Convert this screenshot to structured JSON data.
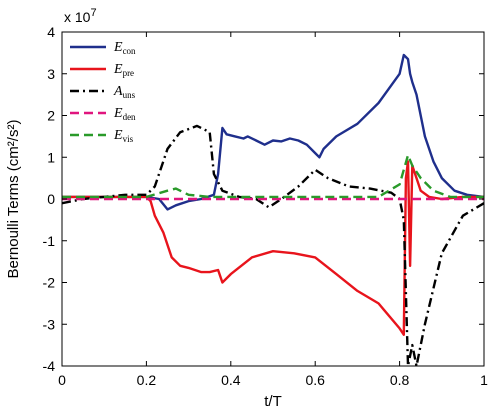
{
  "chart_data": {
    "type": "line",
    "title": "",
    "xlabel": "t/T",
    "ylabel": "Bernoulli Terms (cm²/s²)",
    "y_multiplier_label": "x 10",
    "y_multiplier_exponent": "7",
    "xlim": [
      0,
      1
    ],
    "ylim": [
      -4,
      4
    ],
    "x_ticks": [
      0,
      0.2,
      0.4,
      0.6,
      0.8,
      1
    ],
    "x_tick_labels": [
      "0",
      "0.2",
      "0.4",
      "0.6",
      "0.8",
      "1"
    ],
    "y_ticks": [
      -4,
      -3,
      -2,
      -1,
      0,
      1,
      2,
      3,
      4
    ],
    "y_tick_labels": [
      "-4",
      "-3",
      "-2",
      "-1",
      "0",
      "1",
      "2",
      "3",
      "4"
    ],
    "grid": false,
    "legend_placement": "top-left",
    "series": [
      {
        "name": "E",
        "subscript": "con",
        "color": "#1f2f8c",
        "dash": "solid",
        "points": [
          [
            0,
            0.05
          ],
          [
            0.1,
            0.05
          ],
          [
            0.2,
            0.05
          ],
          [
            0.23,
            0.0
          ],
          [
            0.25,
            -0.25
          ],
          [
            0.27,
            -0.15
          ],
          [
            0.3,
            -0.05
          ],
          [
            0.33,
            0.0
          ],
          [
            0.36,
            0.1
          ],
          [
            0.37,
            0.6
          ],
          [
            0.38,
            1.7
          ],
          [
            0.39,
            1.55
          ],
          [
            0.41,
            1.5
          ],
          [
            0.43,
            1.45
          ],
          [
            0.44,
            1.5
          ],
          [
            0.46,
            1.4
          ],
          [
            0.48,
            1.3
          ],
          [
            0.5,
            1.4
          ],
          [
            0.52,
            1.38
          ],
          [
            0.54,
            1.45
          ],
          [
            0.56,
            1.4
          ],
          [
            0.58,
            1.3
          ],
          [
            0.6,
            1.1
          ],
          [
            0.61,
            1.0
          ],
          [
            0.62,
            1.2
          ],
          [
            0.65,
            1.5
          ],
          [
            0.7,
            1.8
          ],
          [
            0.75,
            2.3
          ],
          [
            0.8,
            3.0
          ],
          [
            0.81,
            3.45
          ],
          [
            0.82,
            3.35
          ],
          [
            0.825,
            3.0
          ],
          [
            0.83,
            2.8
          ],
          [
            0.84,
            2.5
          ],
          [
            0.86,
            1.5
          ],
          [
            0.88,
            0.9
          ],
          [
            0.9,
            0.5
          ],
          [
            0.93,
            0.2
          ],
          [
            0.96,
            0.1
          ],
          [
            1.0,
            0.05
          ]
        ]
      },
      {
        "name": "E",
        "subscript": "pre",
        "color": "#e8141c",
        "dash": "solid",
        "points": [
          [
            0,
            0.05
          ],
          [
            0.1,
            0.05
          ],
          [
            0.2,
            0.05
          ],
          [
            0.21,
            -0.05
          ],
          [
            0.22,
            -0.4
          ],
          [
            0.24,
            -0.8
          ],
          [
            0.26,
            -1.4
          ],
          [
            0.28,
            -1.6
          ],
          [
            0.3,
            -1.65
          ],
          [
            0.33,
            -1.75
          ],
          [
            0.35,
            -1.75
          ],
          [
            0.37,
            -1.7
          ],
          [
            0.38,
            -2.0
          ],
          [
            0.4,
            -1.8
          ],
          [
            0.45,
            -1.4
          ],
          [
            0.5,
            -1.25
          ],
          [
            0.55,
            -1.3
          ],
          [
            0.6,
            -1.4
          ],
          [
            0.65,
            -1.8
          ],
          [
            0.7,
            -2.2
          ],
          [
            0.75,
            -2.5
          ],
          [
            0.8,
            -3.1
          ],
          [
            0.81,
            -3.25
          ],
          [
            0.815,
            0.5
          ],
          [
            0.82,
            0.9
          ],
          [
            0.825,
            -1.6
          ],
          [
            0.83,
            0.8
          ],
          [
            0.84,
            0.5
          ],
          [
            0.85,
            0.2
          ],
          [
            0.87,
            0.05
          ],
          [
            0.9,
            0.0
          ],
          [
            0.95,
            0.05
          ],
          [
            1.0,
            0.05
          ]
        ]
      },
      {
        "name": "A",
        "subscript": "uns",
        "color": "#000000",
        "dash": "dashdot",
        "points": [
          [
            0,
            -0.1
          ],
          [
            0.05,
            0.0
          ],
          [
            0.1,
            0.05
          ],
          [
            0.15,
            0.1
          ],
          [
            0.2,
            0.1
          ],
          [
            0.22,
            0.3
          ],
          [
            0.25,
            1.2
          ],
          [
            0.28,
            1.6
          ],
          [
            0.32,
            1.75
          ],
          [
            0.35,
            1.6
          ],
          [
            0.36,
            0.6
          ],
          [
            0.38,
            0.2
          ],
          [
            0.42,
            0.05
          ],
          [
            0.46,
            0.0
          ],
          [
            0.49,
            -0.2
          ],
          [
            0.52,
            0.0
          ],
          [
            0.56,
            0.3
          ],
          [
            0.6,
            0.7
          ],
          [
            0.63,
            0.5
          ],
          [
            0.68,
            0.3
          ],
          [
            0.73,
            0.25
          ],
          [
            0.78,
            0.15
          ],
          [
            0.8,
            0.0
          ],
          [
            0.81,
            -0.5
          ],
          [
            0.82,
            -4.0
          ],
          [
            0.83,
            -3.5
          ],
          [
            0.84,
            -4.0
          ],
          [
            0.86,
            -3.0
          ],
          [
            0.9,
            -1.3
          ],
          [
            0.95,
            -0.4
          ],
          [
            1.0,
            -0.1
          ]
        ]
      },
      {
        "name": "E",
        "subscript": "den",
        "color": "#e0157e",
        "dash": "dashed",
        "points": [
          [
            0,
            0.0
          ],
          [
            0.5,
            0.0
          ],
          [
            1.0,
            0.0
          ]
        ]
      },
      {
        "name": "E",
        "subscript": "vis",
        "color": "#2a9a2a",
        "dash": "dashed",
        "points": [
          [
            0,
            0.05
          ],
          [
            0.2,
            0.05
          ],
          [
            0.25,
            0.2
          ],
          [
            0.27,
            0.25
          ],
          [
            0.3,
            0.1
          ],
          [
            0.35,
            0.05
          ],
          [
            0.6,
            0.05
          ],
          [
            0.75,
            0.05
          ],
          [
            0.8,
            0.35
          ],
          [
            0.82,
            1.05
          ],
          [
            0.83,
            0.8
          ],
          [
            0.85,
            0.5
          ],
          [
            0.88,
            0.2
          ],
          [
            0.92,
            0.05
          ],
          [
            1.0,
            0.05
          ]
        ]
      }
    ]
  }
}
